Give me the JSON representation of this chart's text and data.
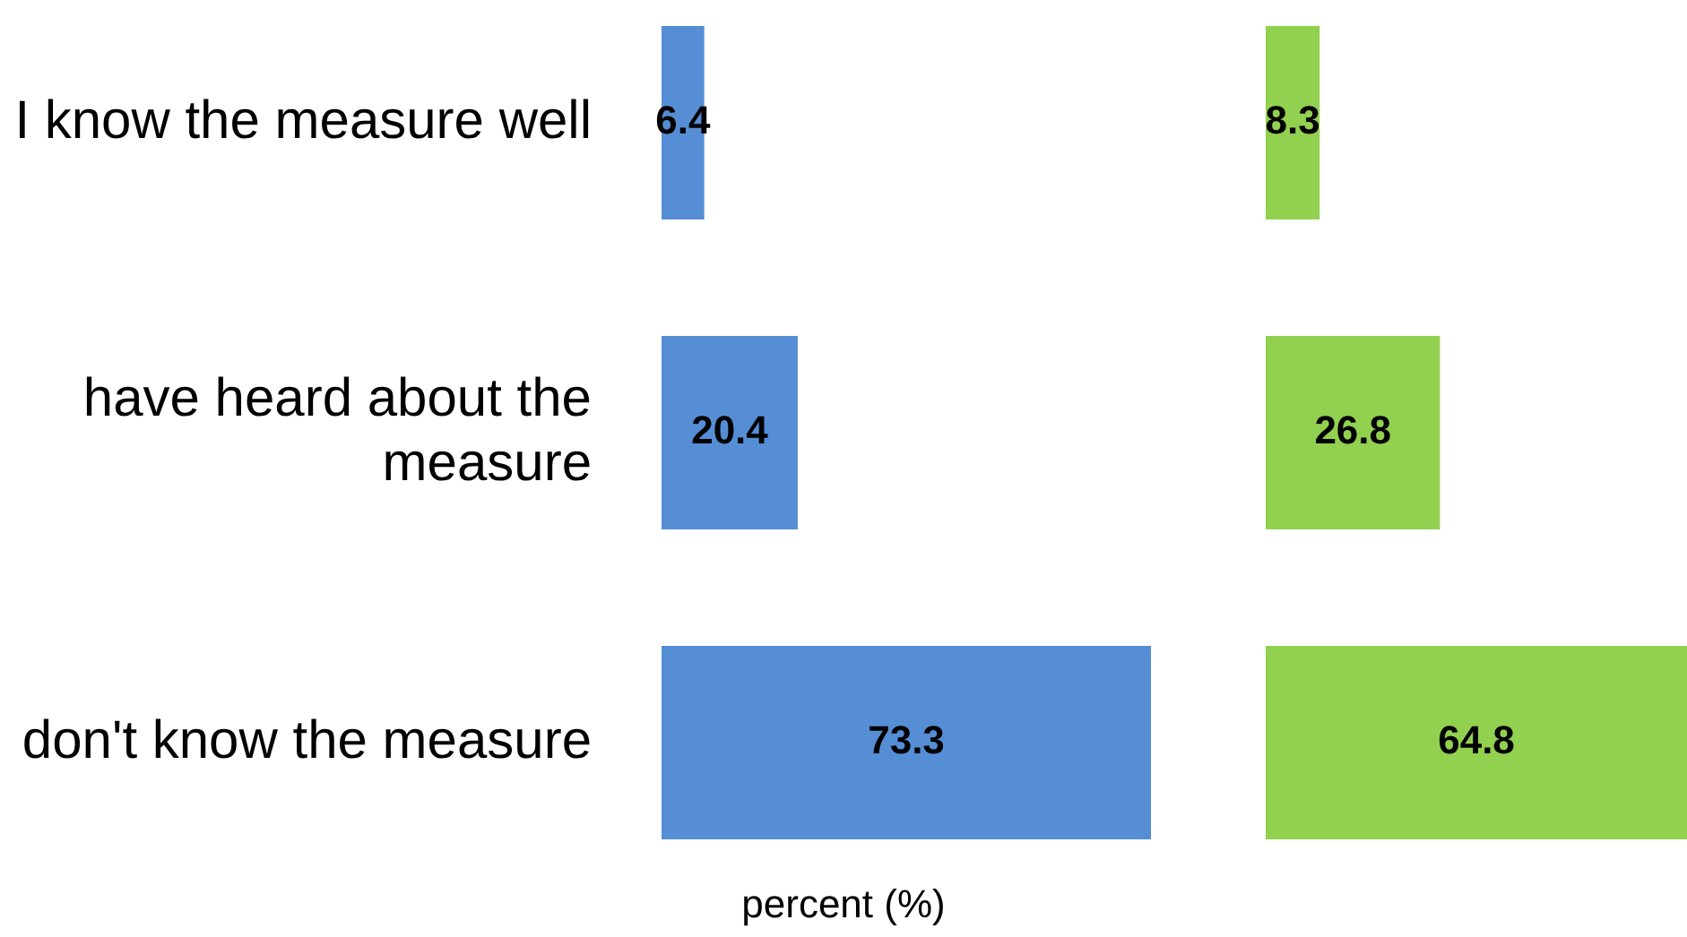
{
  "chart_data": [
    {
      "type": "bar",
      "orientation": "horizontal",
      "categories": [
        "I know the measure well",
        "have heard about the measure",
        "don't know the measure"
      ],
      "values": [
        6.4,
        20.4,
        73.3
      ],
      "color": "#558ed5",
      "data_labels": true,
      "tick_labels": "y",
      "xlabel": "percent (%)"
    },
    {
      "type": "bar",
      "orientation": "horizontal",
      "categories": [
        null,
        null,
        null
      ],
      "values": [
        8.3,
        26.8,
        64.8
      ],
      "color": "#92d050",
      "data_labels": true,
      "tick_labels": false
    }
  ]
}
